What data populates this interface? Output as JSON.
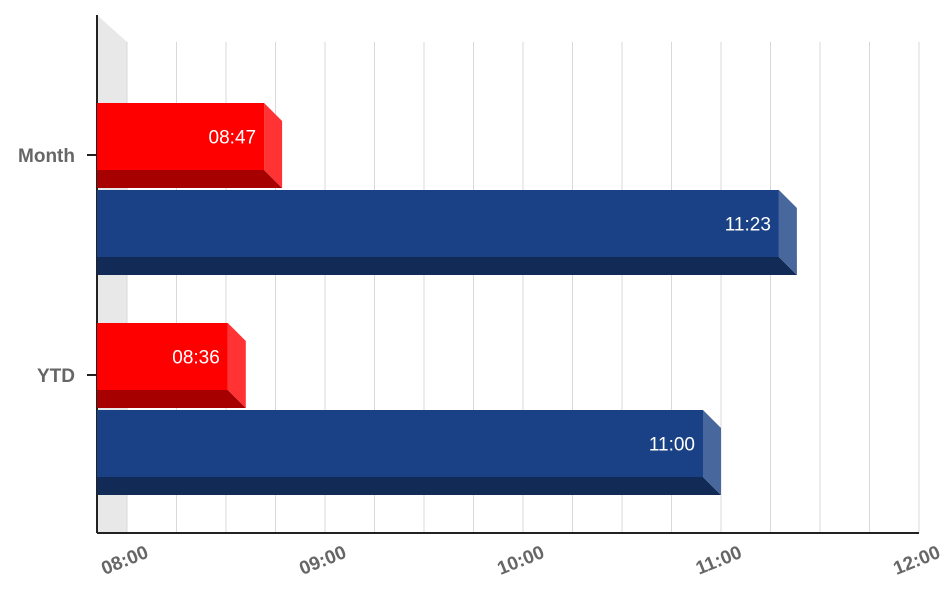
{
  "chart_data": {
    "type": "bar",
    "orientation": "horizontal",
    "style": "3d",
    "categories": [
      "Month",
      "YTD"
    ],
    "series": [
      {
        "values": [
          8.7833,
          8.6
        ],
        "value_labels": [
          "08:47",
          "08:36"
        ],
        "color": "#ff0000"
      },
      {
        "values": [
          11.3833,
          11.0
        ],
        "value_labels": [
          "11:23",
          "11:00"
        ],
        "color": "#1a4185"
      }
    ],
    "xlim": [
      8,
      12
    ],
    "x_ticks": [
      {
        "value": 8,
        "label": "08:00"
      },
      {
        "value": 9,
        "label": "09:00"
      },
      {
        "value": 10,
        "label": "10:00"
      },
      {
        "value": 11,
        "label": "11:00"
      },
      {
        "value": 12,
        "label": "12:00"
      }
    ],
    "minor_gridlines_per_major": 4,
    "grid": true,
    "legend": "none",
    "title": "",
    "xlabel": "",
    "ylabel": ""
  }
}
